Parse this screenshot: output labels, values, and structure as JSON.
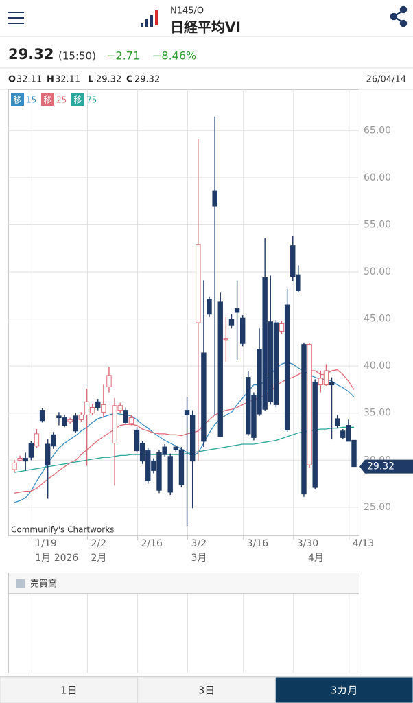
{
  "header": {
    "code": "N145/O",
    "name": "日経平均VI"
  },
  "quote": {
    "price": "29.32",
    "time": "(15:50)",
    "change": "−2.71",
    "change_pct": "−8.46%",
    "date": "26/04/14",
    "ohlc": [
      {
        "label": "O",
        "value": "32.11"
      },
      {
        "label": "H",
        "value": "32.11"
      },
      {
        "label": "L",
        "value": "29.32"
      },
      {
        "label": "C",
        "value": "29.32"
      }
    ]
  },
  "chart_data": {
    "type": "candlestick",
    "credit": "Communify's Chartworks",
    "up_color": "#e06b78",
    "down_color": "#203a67",
    "grid": true,
    "ylim": [
      22,
      69.4
    ],
    "yticks": [
      {
        "value": 25,
        "label": "25.00"
      },
      {
        "value": 30,
        "label": "30.00"
      },
      {
        "value": 35,
        "label": "35.00"
      },
      {
        "value": 40,
        "label": "40.00"
      },
      {
        "value": 45,
        "label": "45.00"
      },
      {
        "value": 50,
        "label": "50.00"
      },
      {
        "value": 55,
        "label": "55.00"
      },
      {
        "value": 60,
        "label": "60.00"
      },
      {
        "value": 65,
        "label": "65.00"
      }
    ],
    "categories": [
      null,
      null,
      null,
      "1/19",
      null,
      null,
      null,
      null,
      null,
      null,
      null,
      null,
      null,
      "2/2",
      null,
      null,
      null,
      null,
      null,
      null,
      null,
      null,
      "2/16",
      null,
      null,
      null,
      null,
      null,
      null,
      null,
      null,
      "3/2",
      null,
      null,
      null,
      null,
      null,
      null,
      null,
      null,
      null,
      "3/16",
      null,
      null,
      null,
      null,
      null,
      null,
      null,
      null,
      "3/30",
      null,
      null,
      null,
      null,
      null,
      null,
      null,
      null,
      null,
      "4/13",
      null
    ],
    "months": [
      null,
      null,
      null,
      "1月 2026",
      null,
      null,
      null,
      null,
      null,
      null,
      null,
      null,
      null,
      "2月",
      null,
      null,
      null,
      null,
      null,
      null,
      null,
      null,
      null,
      null,
      null,
      null,
      null,
      null,
      null,
      null,
      null,
      "3月",
      null,
      null,
      null,
      null,
      null,
      null,
      null,
      null,
      null,
      null,
      null,
      null,
      null,
      null,
      null,
      null,
      null,
      null,
      null,
      null,
      "4月",
      null,
      null,
      null,
      null,
      null,
      null,
      null,
      null,
      null
    ],
    "open": [
      29.0,
      30.0,
      30.2,
      31.8,
      31.5,
      35.3,
      31.7,
      32.7,
      34.7,
      34.5,
      34.1,
      34.7,
      34.3,
      34.8,
      35.0,
      36.2,
      35.1,
      37.8,
      31.8,
      35.3,
      35.3,
      33.9,
      33.2,
      31.8,
      31.0,
      29.9,
      30.8,
      31.4,
      30.4,
      31.4,
      31.1,
      35.3,
      34.8,
      44.6,
      41.4,
      47.1,
      58.6,
      46.8,
      42.8,
      45.0,
      46.1,
      45.1,
      38.8,
      36.9,
      41.8,
      49.4,
      44.7,
      44.6,
      43.7,
      46.5,
      52.8,
      49.7,
      42.3,
      29.5,
      38.3,
      38.0,
      38.0,
      38.3,
      34.4,
      33.1,
      33.7,
      32.11
    ],
    "high": [
      30.0,
      30.5,
      30.8,
      32.0,
      33.3,
      35.5,
      32.2,
      33.0,
      35.1,
      34.8,
      34.5,
      35.0,
      35.1,
      37.6,
      36.0,
      36.5,
      38.0,
      39.9,
      36.6,
      36.1,
      35.6,
      34.8,
      33.5,
      32.0,
      31.3,
      30.2,
      31.1,
      31.7,
      30.7,
      31.6,
      31.4,
      36.7,
      35.3,
      64.1,
      49.1,
      47.4,
      66.5,
      47.8,
      45.2,
      45.5,
      49.1,
      45.4,
      39.5,
      37.2,
      44.0,
      53.6,
      49.6,
      44.9,
      44.8,
      48.2,
      53.8,
      50.7,
      42.5,
      42.5,
      38.6,
      39.5,
      40.2,
      38.8,
      34.8,
      33.3,
      34.3,
      32.11
    ],
    "low": [
      28.7,
      29.9,
      28.9,
      30.0,
      31.3,
      34.0,
      25.9,
      31.2,
      33.7,
      33.5,
      33.9,
      32.9,
      34.1,
      29.4,
      34.8,
      35.3,
      34.5,
      37.2,
      27.3,
      35.0,
      33.8,
      33.7,
      30.8,
      29.6,
      27.5,
      28.6,
      26.5,
      30.4,
      26.3,
      30.9,
      27.1,
      23.0,
      24.9,
      29.9,
      31.4,
      45.2,
      34.8,
      32.5,
      40.4,
      44.0,
      40.6,
      42.1,
      32.6,
      32.1,
      34.7,
      35.2,
      35.9,
      35.6,
      43.4,
      33.0,
      49.0,
      47.8,
      26.1,
      29.2,
      26.9,
      37.2,
      37.9,
      32.2,
      33.4,
      32.2,
      32.0,
      29.32
    ],
    "close": [
      29.7,
      30.2,
      29.9,
      30.3,
      32.8,
      34.2,
      29.5,
      31.5,
      34.5,
      33.7,
      34.3,
      33.1,
      34.8,
      36.2,
      35.6,
      35.6,
      35.9,
      39.0,
      35.8,
      35.8,
      34.0,
      34.5,
      31.0,
      29.9,
      27.8,
      28.9,
      26.8,
      30.6,
      26.6,
      31.1,
      27.4,
      34.8,
      29.9,
      52.9,
      32.0,
      45.5,
      57.0,
      32.5,
      42.9,
      44.3,
      45.7,
      42.4,
      32.8,
      32.4,
      34.9,
      35.4,
      36.2,
      35.9,
      44.5,
      33.2,
      49.5,
      48.0,
      26.4,
      42.3,
      27.1,
      38.7,
      39.5,
      38.0,
      33.7,
      32.4,
      32.0,
      29.32
    ],
    "series": [
      {
        "name": "15",
        "badge": "移",
        "color": "#3b8ec4",
        "values": [
          25.5,
          25.7,
          26.0,
          26.7,
          27.8,
          28.7,
          29.7,
          30.5,
          31.3,
          31.8,
          32.2,
          32.6,
          33.1,
          33.5,
          34.0,
          34.4,
          34.6,
          34.8,
          35.0,
          34.9,
          34.8,
          34.7,
          34.3,
          33.8,
          33.4,
          32.9,
          32.5,
          32.1,
          31.8,
          31.5,
          31.2,
          30.8,
          30.4,
          30.8,
          31.8,
          32.9,
          33.8,
          34.4,
          34.8,
          35.1,
          35.9,
          36.6,
          37.3,
          38.0,
          38.0,
          38.4,
          39.1,
          39.8,
          40.2,
          40.4,
          40.2,
          39.8,
          39.5,
          39.1,
          38.8,
          38.6,
          38.6,
          38.4,
          38.0,
          37.7,
          37.3,
          36.7
        ]
      },
      {
        "name": "25",
        "badge": "移",
        "color": "#e06b78",
        "values": [
          26.5,
          26.6,
          26.7,
          26.7,
          27.0,
          27.5,
          28.0,
          28.4,
          28.9,
          29.3,
          29.7,
          30.0,
          30.6,
          31.1,
          31.6,
          32.1,
          32.5,
          32.9,
          33.3,
          33.7,
          33.8,
          33.8,
          33.7,
          33.3,
          33.1,
          32.9,
          32.8,
          32.8,
          32.7,
          32.7,
          32.6,
          32.8,
          32.9,
          33.1,
          33.7,
          34.3,
          34.8,
          35.1,
          35.3,
          35.4,
          35.6,
          35.9,
          36.2,
          36.4,
          36.6,
          36.9,
          37.3,
          37.9,
          38.3,
          38.6,
          38.8,
          39.1,
          39.4,
          39.5,
          39.5,
          39.1,
          39.1,
          39.5,
          39.6,
          39.1,
          38.4,
          37.5
        ]
      },
      {
        "name": "75",
        "badge": "移",
        "color": "#2ba89c",
        "values": [
          28.7,
          28.8,
          28.9,
          29.0,
          29.1,
          29.2,
          29.3,
          29.4,
          29.5,
          29.6,
          29.7,
          29.8,
          29.9,
          30.0,
          30.1,
          30.2,
          30.3,
          30.3,
          30.4,
          30.5,
          30.5,
          30.6,
          30.6,
          30.6,
          30.6,
          30.6,
          30.6,
          30.6,
          30.6,
          30.6,
          30.6,
          30.7,
          30.8,
          30.9,
          31.0,
          31.1,
          31.2,
          31.3,
          31.4,
          31.5,
          31.6,
          31.7,
          31.7,
          31.7,
          31.8,
          31.9,
          32.0,
          32.1,
          32.3,
          32.5,
          32.7,
          32.9,
          33.0,
          33.1,
          33.2,
          33.3,
          33.3,
          33.4,
          33.4,
          33.5,
          33.5,
          33.5
        ]
      }
    ],
    "volume_title": "売買高"
  },
  "tabs": [
    {
      "label": "1日"
    },
    {
      "label": "3日"
    },
    {
      "label": "3カ月",
      "selected": true
    }
  ]
}
